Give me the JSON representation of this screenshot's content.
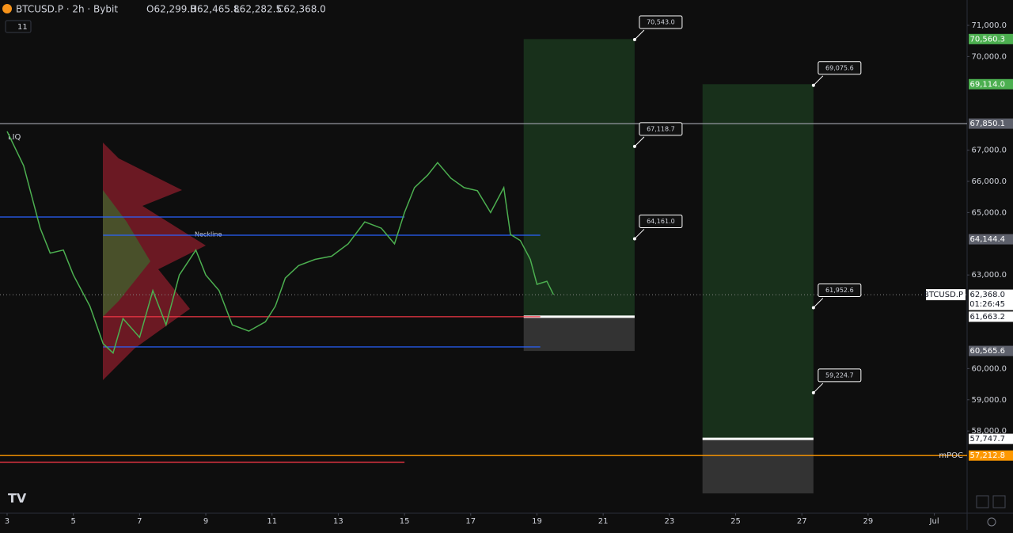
{
  "chart_data": {
    "type": "line",
    "title": "BTCUSD.P · 2h · Bybit",
    "ohlc": [
      "O62,299.8",
      "H62,465.8",
      "L62,282.5",
      "C62,368.0"
    ],
    "indicators": "11",
    "annotations": [
      "LIQ",
      "Neckline"
    ],
    "x": [
      3.0,
      3.5,
      4.0,
      4.3,
      4.7,
      5.0,
      5.5,
      5.9,
      6.2,
      6.5,
      7.0,
      7.4,
      7.8,
      8.2,
      8.7,
      9.0,
      9.4,
      9.8,
      10.3,
      10.8,
      11.1,
      11.4,
      11.8,
      12.3,
      12.8,
      13.3,
      13.8,
      14.3,
      14.7,
      15.0,
      15.3,
      15.7,
      16.0,
      16.4,
      16.8,
      17.2,
      17.6,
      18.0,
      18.2,
      18.5,
      18.8,
      19.0,
      19.3,
      19.5
    ],
    "series": [
      {
        "color": "#4caf50",
        "values": [
          67600,
          66500,
          64500,
          63700,
          63800,
          63000,
          62000,
          60800,
          60500,
          61600,
          61000,
          62500,
          61400,
          63000,
          63800,
          63000,
          62500,
          61400,
          61200,
          61500,
          62000,
          62900,
          63300,
          63500,
          63600,
          64000,
          64700,
          64500,
          64000,
          65000,
          65800,
          66200,
          66600,
          66100,
          65800,
          65700,
          65000,
          65800,
          64300,
          64100,
          63500,
          62700,
          62800,
          62368
        ]
      }
    ],
    "xlim": [
      2.785,
      31.99
    ],
    "ylim": [
      55365,
      71812
    ],
    "xticks": [
      3,
      5,
      7,
      9,
      11,
      13,
      15,
      17,
      19,
      21,
      23,
      25,
      27,
      29,
      {
        "value": 31,
        "label": "Jul"
      }
    ],
    "yticks": [
      {
        "value": 71000,
        "label": "71,000.0"
      },
      {
        "value": 70000,
        "label": "70,000.0"
      },
      {
        "value": 67000,
        "label": "67,000.0"
      },
      {
        "value": 66000,
        "label": "66,000.0"
      },
      {
        "value": 65000,
        "label": "65,000.0"
      },
      {
        "value": 63000,
        "label": "63,000.0"
      },
      {
        "value": 60000,
        "label": "60,000.0"
      },
      {
        "value": 59000,
        "label": "59,000.0"
      },
      {
        "value": 58000,
        "label": "58,000.0"
      }
    ],
    "lines": [
      {
        "value": 67850.1,
        "color": "#9598a1",
        "from": 2.785,
        "to": 31.99
      },
      {
        "value": 64858,
        "color": "#2962ff",
        "from": 2.785,
        "to": 15.0
      },
      {
        "value": 64274,
        "color": "#2962ff",
        "from": 5.9,
        "to": 19.1
      },
      {
        "value": 61663.2,
        "color": "#f23645",
        "from": 5.9,
        "to": 19.1
      },
      {
        "value": 60695,
        "color": "#2962ff",
        "from": 5.9,
        "to": 19.1
      },
      {
        "value": 57212.8,
        "color": "#ff9800",
        "from": 2.785,
        "to": 31.99
      },
      {
        "value": 57000,
        "color": "#f23645",
        "from": 2.785,
        "to": 15.0
      }
    ],
    "positions": [
      {
        "from": 18.6,
        "to": 21.95,
        "target": 70560.3,
        "entry": 61663.2,
        "stop": 60565.6
      },
      {
        "from": 24.0,
        "to": 27.35,
        "target": 69114.0,
        "entry": 57747.7,
        "stop": 56000
      }
    ],
    "callouts": [
      {
        "value": 70543.0,
        "label": "70,543.0",
        "x": 21.95
      },
      {
        "value": 67118.7,
        "label": "67,118.7",
        "x": 21.95
      },
      {
        "value": 64161.0,
        "label": "64,161.0",
        "x": 21.95
      },
      {
        "value": 69075.6,
        "label": "69,075.6",
        "x": 27.35
      },
      {
        "value": 61952.6,
        "label": "61,952.6",
        "x": 27.35
      },
      {
        "value": 59224.7,
        "label": "59,224.7",
        "x": 27.35
      }
    ],
    "levels": [
      {
        "value": 70560.3,
        "label": "70,560.3",
        "color": "#4caf50"
      },
      {
        "value": 69114.0,
        "label": "69,114.0",
        "color": "#4caf50"
      },
      {
        "value": 67850.1,
        "label": "67,850.1",
        "color": "#5d606b"
      },
      {
        "value": 64144.4,
        "label": "64,144.4",
        "color": "#5d606b"
      },
      {
        "value": 62368.0,
        "label": "62,368.0",
        "color": "#ffffff",
        "name": "BTCUSD.P",
        "timer": "01:26:45"
      },
      {
        "value": 61663.2,
        "label": "61,663.2",
        "color": "#ffffff"
      },
      {
        "value": 60565.6,
        "label": "60,565.6",
        "color": "#5d606b"
      },
      {
        "value": 57747.7,
        "label": "57,747.7",
        "color": "#ffffff"
      },
      {
        "value": 57212.8,
        "label": "57,212.8",
        "color": "#ff9800",
        "name": "mPOC"
      }
    ]
  }
}
